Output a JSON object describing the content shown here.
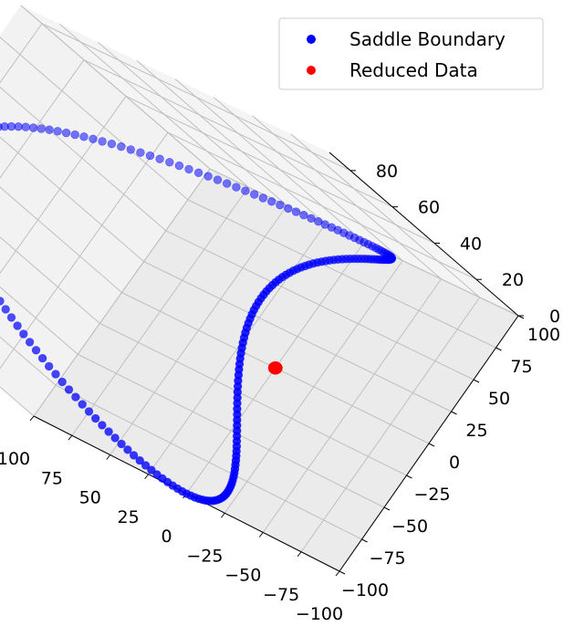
{
  "chart_data": {
    "type": "scatter",
    "projection": "3d",
    "title": "",
    "xlabel": "",
    "ylabel": "",
    "zlabel": "",
    "xlim": [
      -100,
      100
    ],
    "ylim": [
      -100,
      100
    ],
    "zlim": [
      0,
      90
    ],
    "x_ticks": [
      "100",
      "75",
      "50",
      "25",
      "0",
      "−25",
      "−50",
      "−75",
      "−100"
    ],
    "y_ticks": [
      "−100",
      "−75",
      "−50",
      "−25",
      "0",
      "25",
      "50",
      "75",
      "100"
    ],
    "z_ticks": [
      "0",
      "20",
      "40",
      "60",
      "80"
    ],
    "grid": true,
    "legend_position": "top-right",
    "series": [
      {
        "name": "Saddle Boundary",
        "color": "#0000ff",
        "marker": "circle",
        "shape": "closed saddle-shaped loop: radius 100 at z = 0..80",
        "points": [
          {
            "x": 100,
            "y": 0,
            "z": 80
          },
          {
            "x": 70.7,
            "y": 70.7,
            "z": 40
          },
          {
            "x": 0,
            "y": 100,
            "z": 0
          },
          {
            "x": -70.7,
            "y": 70.7,
            "z": 40
          },
          {
            "x": -100,
            "y": 0,
            "z": 80
          },
          {
            "x": -70.7,
            "y": -70.7,
            "z": 40
          },
          {
            "x": 0,
            "y": -100,
            "z": 0
          },
          {
            "x": 70.7,
            "y": -70.7,
            "z": 40
          }
        ]
      },
      {
        "name": "Reduced Data",
        "color": "#ff0000",
        "marker": "circle",
        "shape": "small ring near origin",
        "points": [
          {
            "x": 2,
            "y": 0,
            "z": 0
          },
          {
            "x": 0,
            "y": 2,
            "z": 0
          },
          {
            "x": -2,
            "y": 0,
            "z": 0
          },
          {
            "x": 0,
            "y": -2,
            "z": 0
          }
        ]
      }
    ]
  }
}
